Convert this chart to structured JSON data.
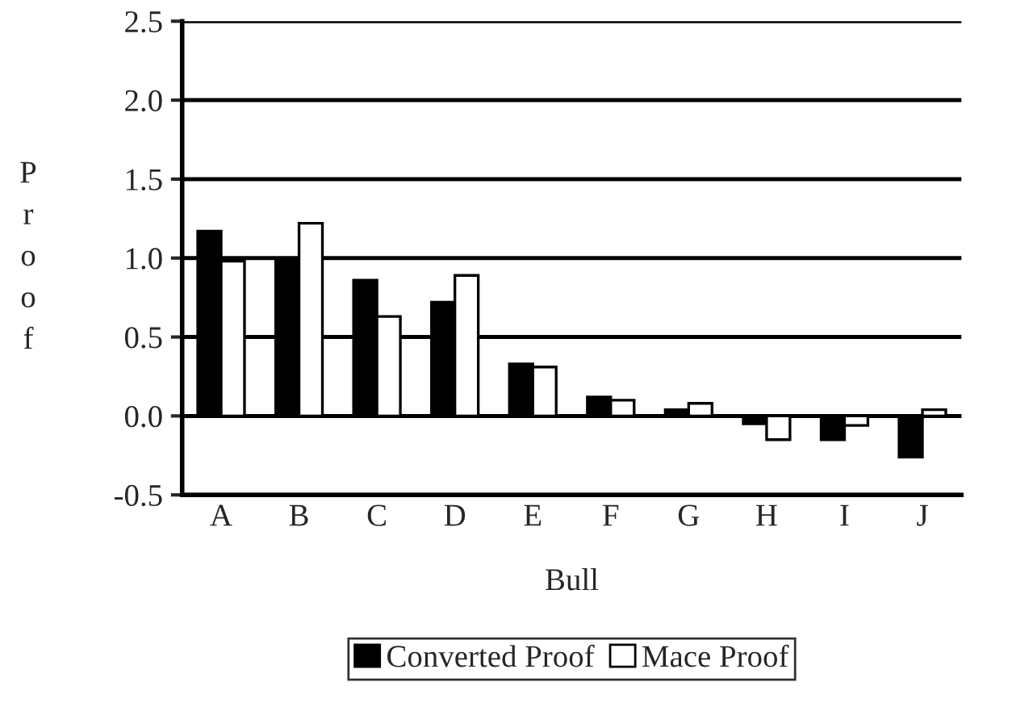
{
  "chart_data": {
    "type": "bar",
    "xlabel": "Bull",
    "ylabel": "Proof",
    "categories": [
      "A",
      "B",
      "C",
      "D",
      "E",
      "F",
      "G",
      "H",
      "I",
      "J"
    ],
    "series": [
      {
        "name": "Converted Proof",
        "color": "#000000",
        "values": [
          1.17,
          1.0,
          0.86,
          0.72,
          0.33,
          0.12,
          0.04,
          -0.05,
          -0.15,
          -0.26
        ]
      },
      {
        "name": "Mace Proof",
        "color": "#ffffff",
        "values": [
          0.98,
          1.22,
          0.63,
          0.89,
          0.31,
          0.1,
          0.08,
          -0.15,
          -0.06,
          0.04
        ]
      }
    ],
    "ylim": [
      -0.5,
      2.5
    ],
    "yticks": [
      -0.5,
      {
        "value": 0,
        "label": "0.0"
      },
      0.5,
      {
        "value": 1,
        "label": "1.0"
      },
      1.5,
      {
        "value": 2,
        "label": "2.0"
      },
      2.5
    ],
    "grid": "y",
    "legend": "bottom"
  }
}
